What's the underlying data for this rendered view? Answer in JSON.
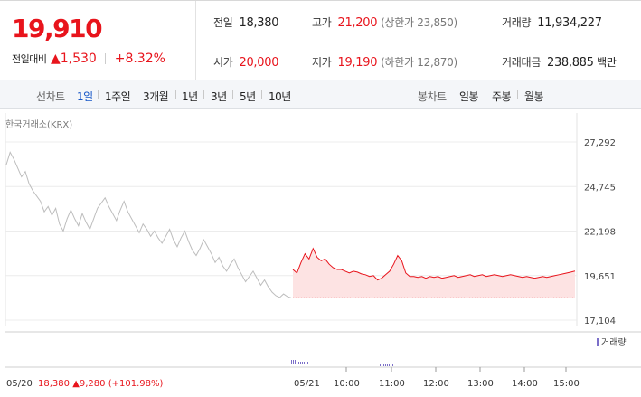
{
  "summary": {
    "price": "19,910",
    "change_label": "전일대비",
    "change_arrow": "▲",
    "change_abs": "1,530",
    "change_pct": "+8.32%",
    "prev_close": {
      "label": "전일",
      "value": "18,380"
    },
    "open": {
      "label": "시가",
      "value": "20,000"
    },
    "high": {
      "label": "고가",
      "value": "21,200",
      "limit": "(상한가 23,850)"
    },
    "low": {
      "label": "저가",
      "value": "19,190",
      "limit": "(하한가 12,870)"
    },
    "volume": {
      "label": "거래량",
      "value": "11,934,227"
    },
    "amount": {
      "label": "거래대금",
      "value": "238,885",
      "unit": "백만"
    }
  },
  "tabs": {
    "line_label": "선차트",
    "line_items": [
      "1일",
      "1주일",
      "3개월",
      "1년",
      "3년",
      "5년",
      "10년"
    ],
    "active": "1일",
    "candle_label": "봉차트",
    "candle_items": [
      "일봉",
      "주봉",
      "월봉"
    ]
  },
  "chart_data": {
    "type": "line",
    "source_label": "한국거래소(KRX)",
    "y_ticks": [
      "27,292",
      "24,745",
      "22,198",
      "19,651",
      "17,104"
    ],
    "ylim": [
      17104,
      27292
    ],
    "prev_day": {
      "date_label": "05/20",
      "close": "18,380",
      "change": "▲9,280",
      "change_pct": "(+101.98%)",
      "values": [
        26000,
        26700,
        26300,
        25800,
        25300,
        25600,
        24900,
        24500,
        24200,
        23900,
        23300,
        23600,
        23100,
        23500,
        22600,
        22200,
        22900,
        23400,
        22900,
        22500,
        23200,
        22700,
        22300,
        22900,
        23500,
        23800,
        24100,
        23600,
        23200,
        22800,
        23400,
        23900,
        23300,
        22900,
        22500,
        22100,
        22600,
        22300,
        21900,
        22200,
        21800,
        21500,
        21900,
        22300,
        21700,
        21300,
        21800,
        22200,
        21600,
        21100,
        20800,
        21200,
        21700,
        21300,
        20900,
        20400,
        20700,
        20200,
        19900,
        20300,
        20600,
        20100,
        19700,
        19300,
        19600,
        19900,
        19500,
        19100,
        19400,
        19000,
        18700,
        18500,
        18400,
        18600,
        18450,
        18380
      ]
    },
    "today": {
      "date_label": "05/21",
      "base_value": 18380,
      "values": [
        20000,
        19800,
        20400,
        20900,
        20600,
        21200,
        20700,
        20500,
        20600,
        20300,
        20100,
        20000,
        20000,
        19900,
        19800,
        19900,
        19850,
        19750,
        19700,
        19600,
        19650,
        19400,
        19500,
        19700,
        19900,
        20300,
        20800,
        20500,
        19800,
        19600,
        19600,
        19550,
        19600,
        19500,
        19600,
        19550,
        19600,
        19500,
        19550,
        19600,
        19650,
        19550,
        19600,
        19650,
        19700,
        19600,
        19650,
        19700,
        19600,
        19650,
        19700,
        19650,
        19600,
        19650,
        19700,
        19650,
        19600,
        19550,
        19600,
        19550,
        19500,
        19550,
        19600,
        19550,
        19600,
        19650,
        19700,
        19750,
        19800,
        19850,
        19910
      ],
      "x_ticks": [
        "10:00",
        "11:00",
        "12:00",
        "13:00",
        "14:00",
        "15:00"
      ]
    },
    "volume_legend": "거래량",
    "colors": {
      "today_line": "#e8141c",
      "today_fill": "#fde3e3",
      "prev_line": "#bdbdbd",
      "volume": "#7b6fc9"
    }
  }
}
